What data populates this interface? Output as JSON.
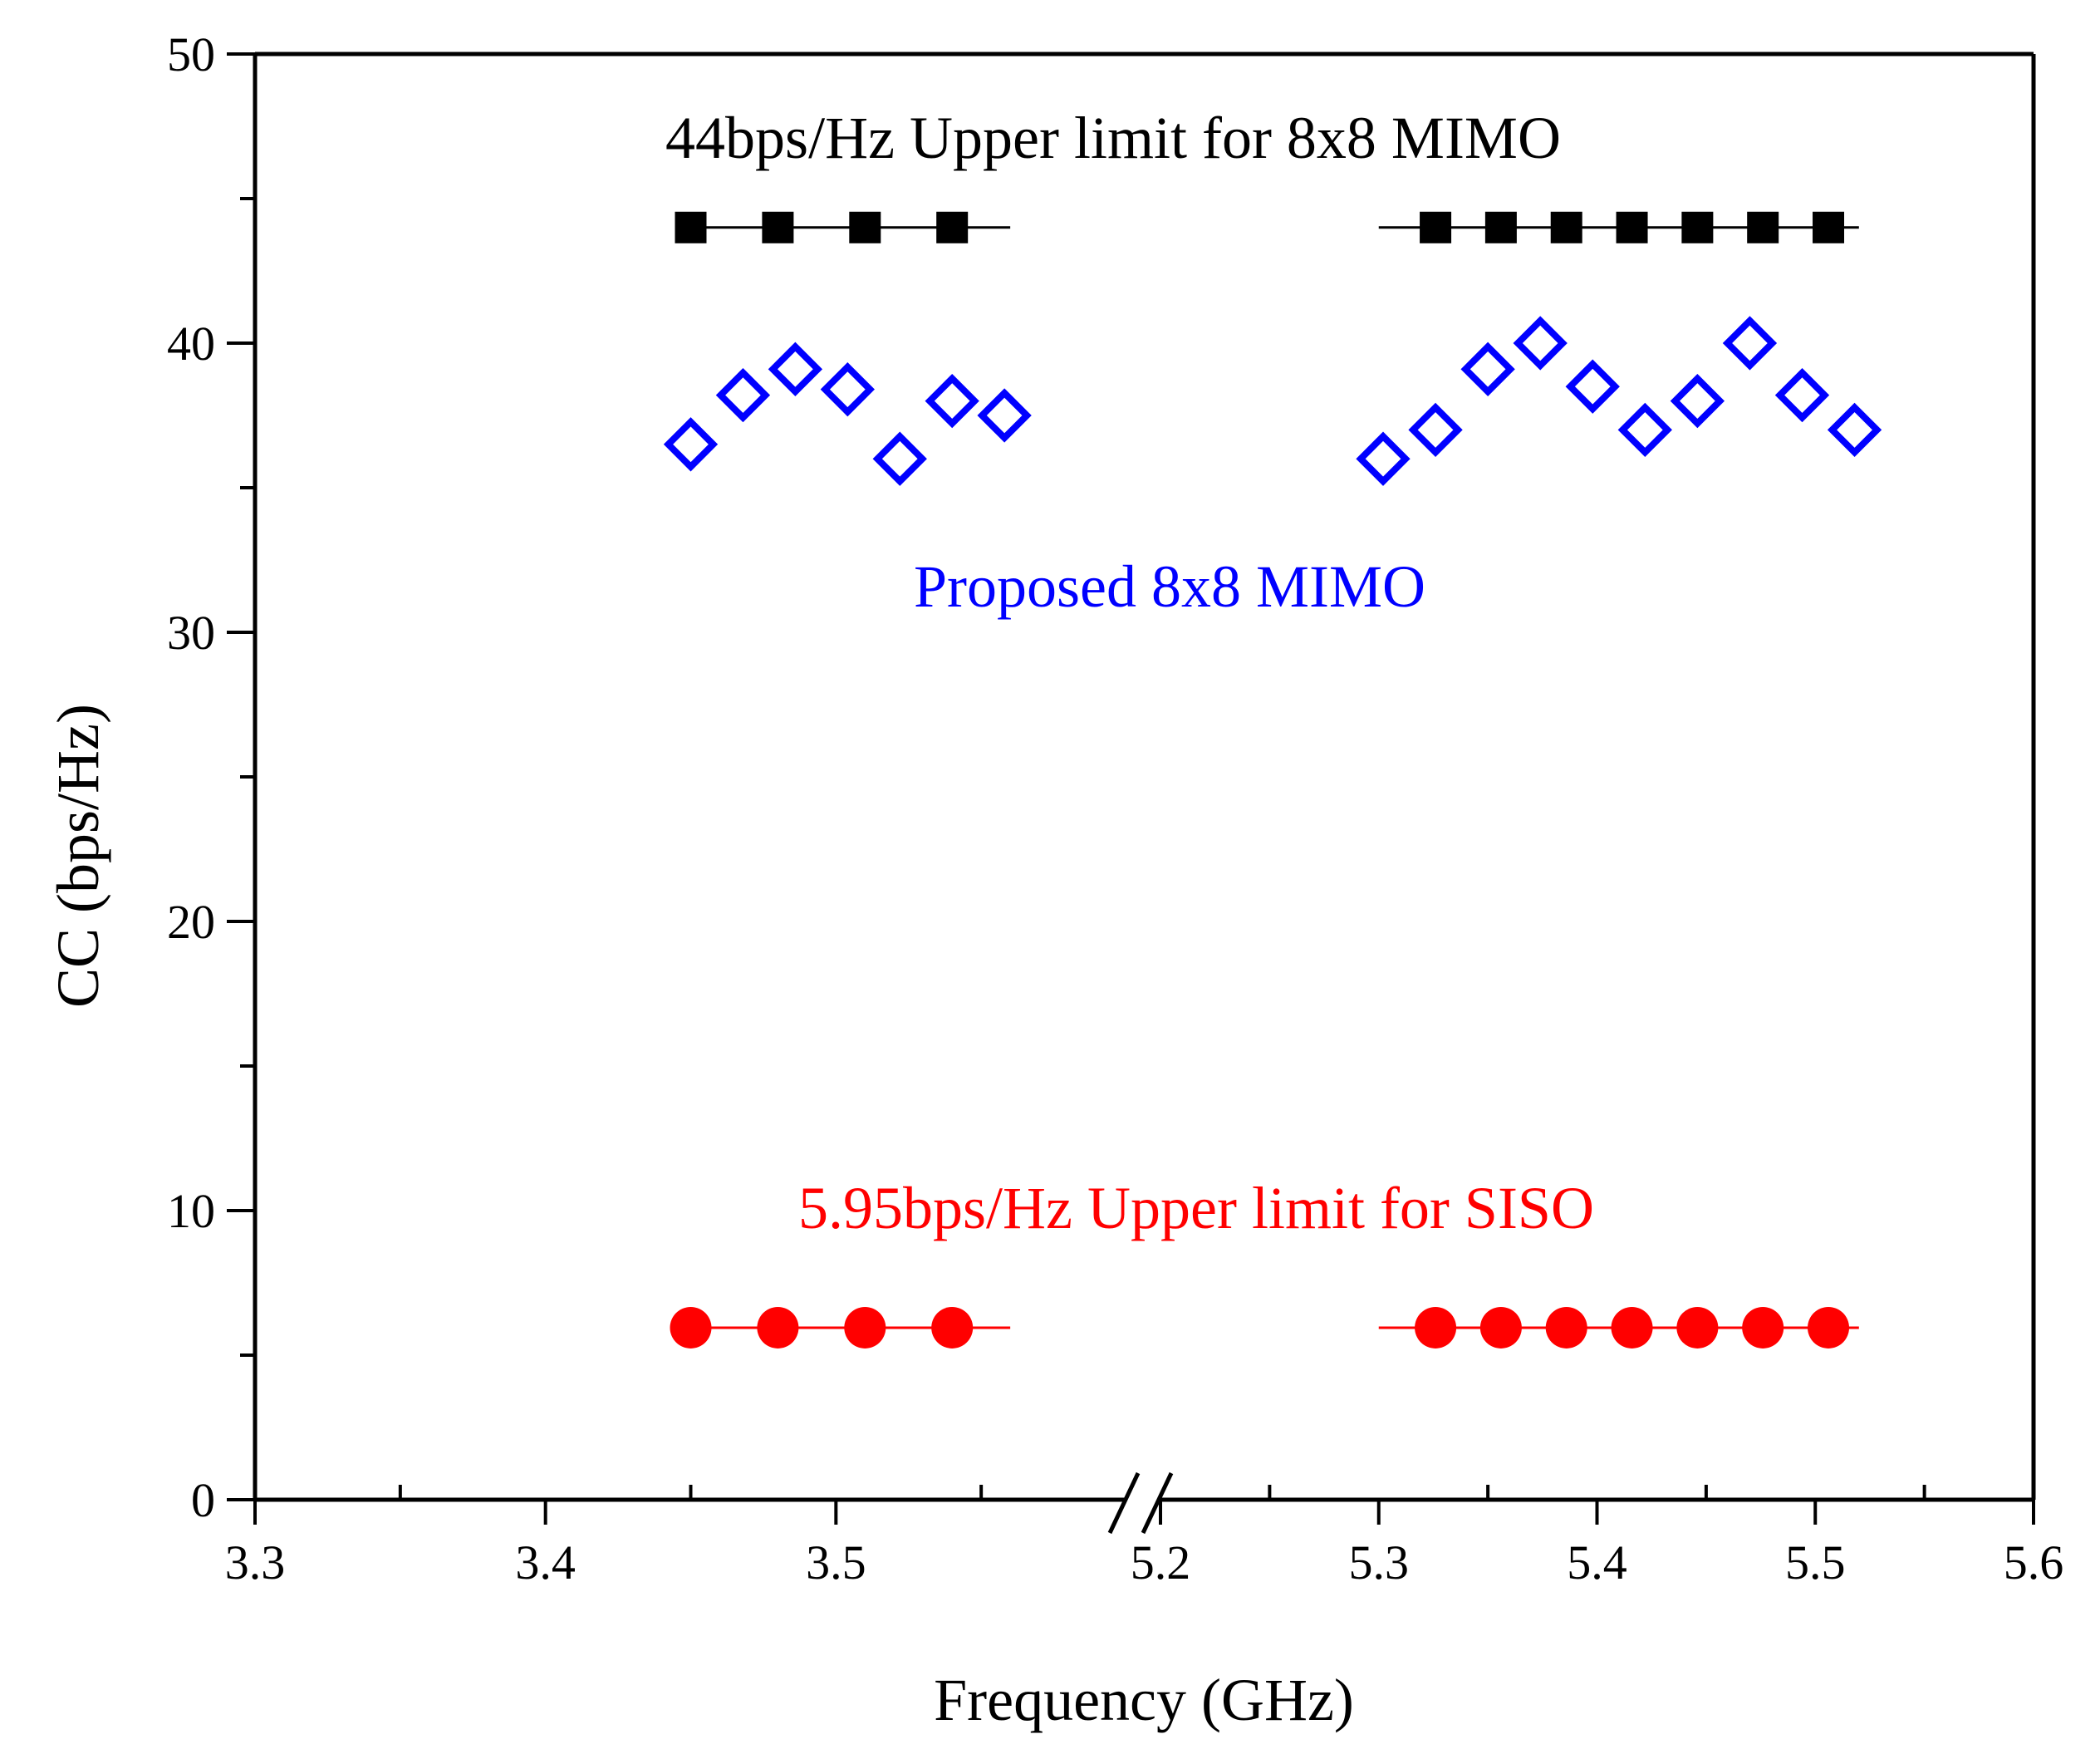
{
  "chart_data": {
    "type": "scatter",
    "xlabel": "Frequency (GHz)",
    "ylabel": "CC (bps/Hz)",
    "ylim": [
      0,
      50
    ],
    "y_ticks": [
      "0",
      "10",
      "20",
      "30",
      "40",
      "50"
    ],
    "x_axis_broken": true,
    "x_segments": [
      {
        "xlim": [
          3.3,
          3.6
        ],
        "tick_labels": [
          "3.3",
          "3.4",
          "3.5"
        ]
      },
      {
        "xlim": [
          5.2,
          5.6
        ],
        "tick_labels": [
          "5.2",
          "5.3",
          "5.4",
          "5.5",
          "5.6"
        ]
      }
    ],
    "grid": false,
    "legend": "none",
    "series": [
      {
        "marker": "square-filled",
        "color": "#000000",
        "line": [
          [
            3.45,
            3.56
          ],
          [
            5.3,
            5.52
          ]
        ],
        "points": [
          [
            3.45,
            44
          ],
          [
            3.48,
            44
          ],
          [
            3.51,
            44
          ],
          [
            3.54,
            44
          ],
          [
            5.326,
            44
          ],
          [
            5.356,
            44
          ],
          [
            5.386,
            44
          ],
          [
            5.416,
            44
          ],
          [
            5.446,
            44
          ],
          [
            5.476,
            44
          ],
          [
            5.506,
            44
          ]
        ]
      },
      {
        "marker": "diamond-open",
        "color": "#0000ff",
        "points": [
          [
            3.45,
            36.5
          ],
          [
            3.468,
            38.2
          ],
          [
            3.486,
            39.1
          ],
          [
            3.504,
            38.4
          ],
          [
            3.522,
            36
          ],
          [
            3.54,
            38
          ],
          [
            3.558,
            37.5
          ],
          [
            5.302,
            36
          ],
          [
            5.326,
            37
          ],
          [
            5.35,
            39.1
          ],
          [
            5.374,
            40
          ],
          [
            5.398,
            38.5
          ],
          [
            5.422,
            37
          ],
          [
            5.446,
            38
          ],
          [
            5.47,
            40
          ],
          [
            5.494,
            38.2
          ],
          [
            5.518,
            37
          ]
        ]
      },
      {
        "marker": "circle-filled",
        "color": "#ff0000",
        "line": [
          [
            3.45,
            3.56
          ],
          [
            5.3,
            5.52
          ]
        ],
        "points": [
          [
            3.45,
            5.95
          ],
          [
            3.48,
            5.95
          ],
          [
            3.51,
            5.95
          ],
          [
            3.54,
            5.95
          ],
          [
            5.326,
            5.95
          ],
          [
            5.356,
            5.95
          ],
          [
            5.386,
            5.95
          ],
          [
            5.416,
            5.95
          ],
          [
            5.446,
            5.95
          ],
          [
            5.476,
            5.95
          ],
          [
            5.506,
            5.95
          ]
        ]
      }
    ],
    "annotations": [
      {
        "text": "44bps/Hz Upper limit for 8x8 MIMO",
        "color": "#000000"
      },
      {
        "text": "Proposed 8x8 MIMO",
        "color": "#0000ff"
      },
      {
        "text": "5.95bps/Hz Upper limit for SISO",
        "color": "#ff0000"
      }
    ]
  }
}
